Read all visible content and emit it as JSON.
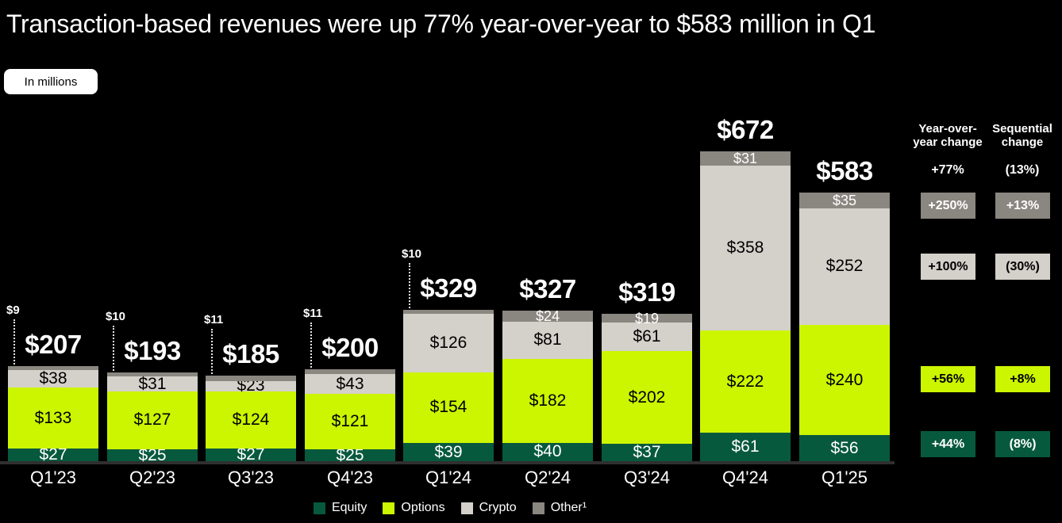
{
  "title": "Transaction-based revenues were up 77% year-over-year to $583 million in Q1",
  "badge": {
    "label": "In millions"
  },
  "colors": {
    "background": "#000000",
    "equity": "#07593d",
    "options": "#ccf500",
    "crypto": "#d4d0ca",
    "other": "#8a8680",
    "baseline": "#2f2f2f",
    "text": "#ffffff"
  },
  "chart_data": {
    "type": "bar",
    "stacked": true,
    "value_unit": "USD millions",
    "value_prefix": "$",
    "categories": [
      "Q1'23",
      "Q2'23",
      "Q3'23",
      "Q4'23",
      "Q1'24",
      "Q2'24",
      "Q3'24",
      "Q4'24",
      "Q1'25"
    ],
    "series": [
      {
        "name": "Equity",
        "color_key": "equity",
        "label_color": "#ffffff",
        "values": [
          27,
          25,
          27,
          25,
          39,
          40,
          37,
          61,
          56
        ]
      },
      {
        "name": "Options",
        "color_key": "options",
        "label_color": "#000000",
        "values": [
          133,
          127,
          124,
          121,
          154,
          182,
          202,
          222,
          240
        ]
      },
      {
        "name": "Crypto",
        "color_key": "crypto",
        "label_color": "#000000",
        "values": [
          38,
          31,
          23,
          43,
          126,
          81,
          61,
          358,
          252
        ]
      },
      {
        "name": "Other",
        "color_key": "other",
        "label_color": "#ffffff",
        "values": [
          9,
          10,
          11,
          11,
          10,
          24,
          19,
          31,
          35
        ]
      }
    ],
    "totals": [
      207,
      193,
      185,
      200,
      329,
      327,
      319,
      672,
      583
    ],
    "other_label_position": [
      "callout",
      "callout",
      "callout",
      "callout",
      "callout",
      "inside",
      "inside",
      "inside",
      "inside"
    ],
    "legend": [
      {
        "label": "Equity",
        "color_key": "equity"
      },
      {
        "label": "Options",
        "color_key": "options"
      },
      {
        "label": "Crypto",
        "color_key": "crypto"
      },
      {
        "label": "Other¹",
        "color_key": "other"
      }
    ]
  },
  "change_columns": {
    "yoy": {
      "header": "Year-over-\nyear change",
      "total": "+77%"
    },
    "seq": {
      "header": "Sequential\nchange",
      "total": "(13%)"
    },
    "rows": [
      {
        "series": "Other",
        "color_key": "other",
        "label_color": "#ffffff",
        "yoy": "+250%",
        "seq": "+13%"
      },
      {
        "series": "Crypto",
        "color_key": "crypto",
        "label_color": "#000000",
        "yoy": "+100%",
        "seq": "(30%)"
      },
      {
        "series": "Options",
        "color_key": "options",
        "label_color": "#000000",
        "yoy": "+56%",
        "seq": "+8%"
      },
      {
        "series": "Equity",
        "color_key": "equity",
        "label_color": "#ffffff",
        "yoy": "+44%",
        "seq": "(8%)"
      }
    ]
  }
}
